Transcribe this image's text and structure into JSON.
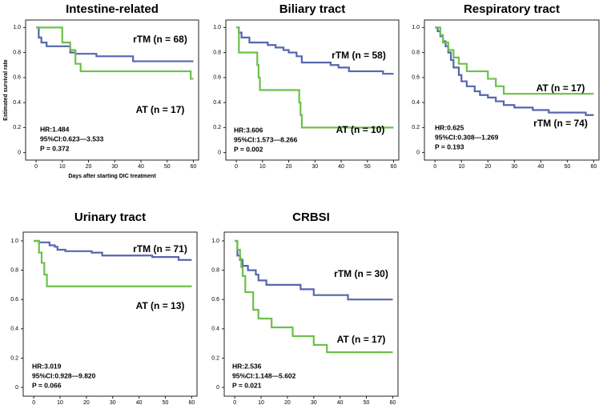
{
  "chart_data": [
    {
      "type": "line",
      "step": true,
      "title": "Intestine-related",
      "xlabel": "Days after starting DIC treatment",
      "ylabel": "Estimated survival rate",
      "xlim": [
        -4,
        62
      ],
      "ylim": [
        -0.06,
        1.06
      ],
      "xticks": [
        0,
        10,
        20,
        30,
        40,
        50,
        60
      ],
      "yticks": [
        0,
        0.2,
        0.4,
        0.6,
        0.8,
        {
          "value": 1,
          "label": "1.0"
        }
      ],
      "series": [
        {
          "name": "rTM (n = 68)",
          "color": "#5566b0",
          "x": [
            0,
            1,
            2,
            4,
            12,
            13,
            15,
            23,
            37,
            60
          ],
          "values": [
            1,
            0.92,
            0.88,
            0.85,
            0.85,
            0.8,
            0.79,
            0.77,
            0.73,
            0.73
          ]
        },
        {
          "name": "AT (n = 17)",
          "color": "#6cc04a",
          "x": [
            0,
            10,
            13,
            15,
            17,
            59,
            60
          ],
          "values": [
            1,
            0.88,
            0.82,
            0.71,
            0.65,
            0.59,
            0.59
          ]
        }
      ],
      "annotations": [
        "HR:1.484",
        "95%CI:0.623—3.533",
        "P = 0.372"
      ]
    },
    {
      "type": "line",
      "step": true,
      "title": "Biliary tract",
      "xlim": [
        -4,
        62
      ],
      "ylim": [
        -0.06,
        1.06
      ],
      "xticks": [
        0,
        10,
        20,
        30,
        40,
        50,
        60
      ],
      "yticks": [
        0,
        0.2,
        0.4,
        0.6,
        0.8,
        {
          "value": 1,
          "label": "1.0"
        }
      ],
      "series": [
        {
          "name": "rTM (n = 58)",
          "color": "#5566b0",
          "x": [
            0,
            1,
            2,
            5,
            12,
            15,
            18,
            20,
            23,
            25,
            36,
            39,
            43,
            56,
            60
          ],
          "values": [
            1,
            0.96,
            0.92,
            0.88,
            0.86,
            0.84,
            0.82,
            0.8,
            0.77,
            0.72,
            0.7,
            0.68,
            0.65,
            0.63,
            0.63
          ]
        },
        {
          "name": "AT (n = 10)",
          "color": "#6cc04a",
          "x": [
            0,
            1,
            8,
            8.5,
            9,
            24,
            24.5,
            25,
            60
          ],
          "values": [
            1,
            0.8,
            0.7,
            0.6,
            0.5,
            0.4,
            0.3,
            0.2,
            0.2
          ]
        }
      ],
      "annotations": [
        "HR:3.606",
        "95%CI:1.573—8.266",
        "P = 0.002"
      ]
    },
    {
      "type": "line",
      "step": true,
      "title": "Respiratory tract",
      "xlim": [
        -4,
        62
      ],
      "ylim": [
        -0.06,
        1.06
      ],
      "xticks": [
        0,
        10,
        20,
        30,
        40,
        50,
        60
      ],
      "yticks": [
        0,
        0.2,
        0.4,
        0.6,
        0.8,
        {
          "value": 1,
          "label": "1.0"
        }
      ],
      "series": [
        {
          "name": "rTM (n = 74)",
          "color": "#5566b0",
          "x": [
            0,
            1,
            2,
            3,
            4,
            5,
            6,
            7,
            9,
            10,
            12,
            15,
            17,
            20,
            23,
            26,
            30,
            37,
            43,
            57,
            60
          ],
          "values": [
            1,
            0.97,
            0.93,
            0.89,
            0.85,
            0.8,
            0.74,
            0.68,
            0.62,
            0.57,
            0.53,
            0.49,
            0.46,
            0.44,
            0.41,
            0.38,
            0.36,
            0.34,
            0.32,
            0.3,
            0.3
          ]
        },
        {
          "name": "AT (n = 17)",
          "color": "#6cc04a",
          "x": [
            0,
            2,
            3,
            5,
            7,
            9,
            12,
            20,
            23,
            26,
            60
          ],
          "values": [
            1,
            0.94,
            0.88,
            0.82,
            0.76,
            0.71,
            0.65,
            0.59,
            0.53,
            0.47,
            0.47
          ]
        }
      ],
      "annotations": [
        "HR:0.625",
        "95%CI:0.308—1.269",
        "P = 0.193"
      ]
    },
    {
      "type": "line",
      "step": true,
      "title": "Urinary tract",
      "xlim": [
        -4,
        62
      ],
      "ylim": [
        -0.06,
        1.06
      ],
      "xticks": [
        0,
        10,
        20,
        30,
        40,
        50,
        60
      ],
      "yticks": [
        0,
        0.2,
        0.4,
        0.6,
        0.8,
        {
          "value": 1,
          "label": "1.0"
        }
      ],
      "series": [
        {
          "name": "rTM (n = 71)",
          "color": "#5566b0",
          "x": [
            0,
            2,
            6,
            8,
            9,
            12,
            22,
            26,
            45,
            55,
            60
          ],
          "values": [
            1,
            0.99,
            0.97,
            0.96,
            0.94,
            0.93,
            0.92,
            0.9,
            0.89,
            0.87,
            0.87
          ]
        },
        {
          "name": "AT (n = 13)",
          "color": "#6cc04a",
          "x": [
            0,
            2,
            3,
            4,
            5,
            60
          ],
          "values": [
            1,
            0.92,
            0.85,
            0.77,
            0.69,
            0.69
          ]
        }
      ],
      "annotations": [
        "HR:3.019",
        "95%CI:0.928—9.820",
        "P = 0.066"
      ]
    },
    {
      "type": "line",
      "step": true,
      "title": "CRBSI",
      "xlim": [
        -4,
        62
      ],
      "ylim": [
        -0.06,
        1.06
      ],
      "xticks": [
        0,
        10,
        20,
        30,
        40,
        50,
        60
      ],
      "yticks": [
        0,
        0.2,
        0.4,
        0.6,
        0.8,
        {
          "value": 1,
          "label": "1.0"
        }
      ],
      "series": [
        {
          "name": "rTM (n = 30)",
          "color": "#5566b0",
          "x": [
            0,
            1,
            2,
            3,
            5,
            8,
            9,
            12,
            25,
            30,
            43,
            60
          ],
          "values": [
            1,
            0.9,
            0.87,
            0.83,
            0.8,
            0.77,
            0.73,
            0.7,
            0.67,
            0.63,
            0.6,
            0.6
          ]
        },
        {
          "name": "AT (n = 17)",
          "color": "#6cc04a",
          "x": [
            0,
            1,
            2,
            2.5,
            3,
            4,
            7,
            9,
            14,
            22,
            30,
            35,
            60
          ],
          "values": [
            1,
            0.94,
            0.88,
            0.82,
            0.76,
            0.65,
            0.53,
            0.47,
            0.41,
            0.35,
            0.29,
            0.24,
            0.24
          ]
        }
      ],
      "annotations": [
        "HR:2.536",
        "95%CI:1.148—5.602",
        "P = 0.021"
      ]
    }
  ]
}
